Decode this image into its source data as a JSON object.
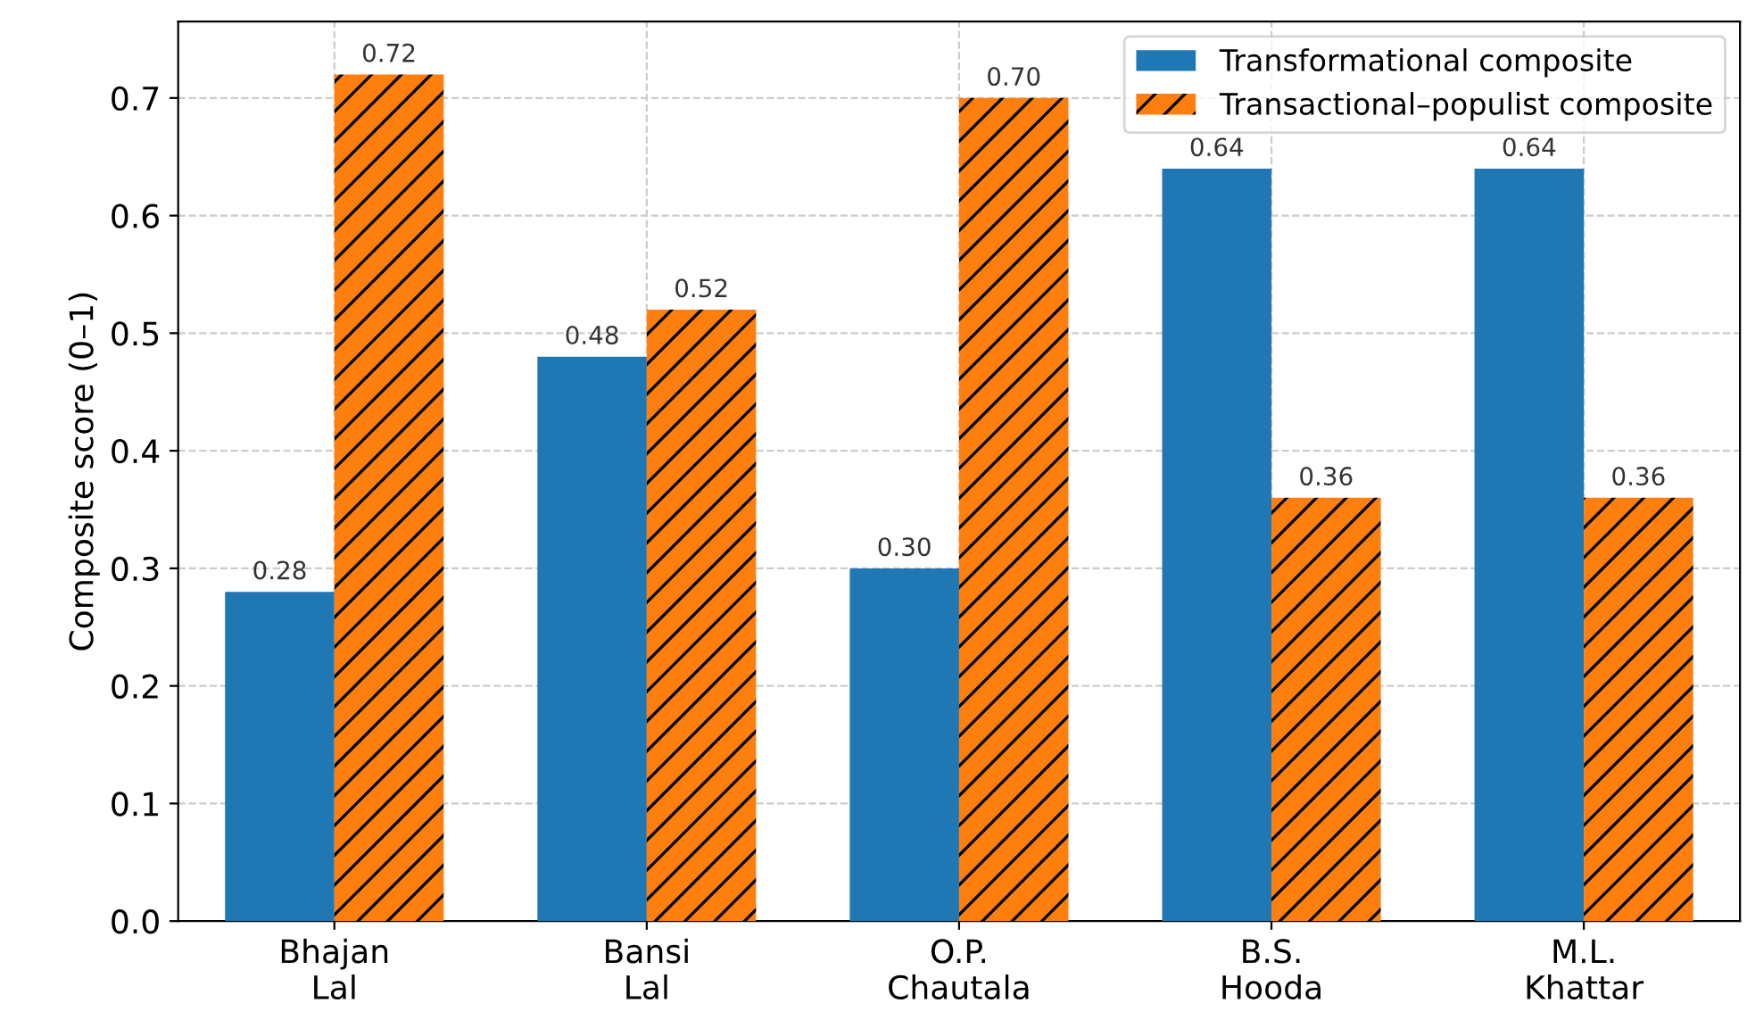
{
  "chart_data": {
    "type": "bar",
    "ylabel": "Composite score (0–1)",
    "categories": [
      "Bhajan\nLal",
      "Bansi\nLal",
      "O.P.\nChautala",
      "B.S.\nHooda",
      "M.L.\nKhattar"
    ],
    "series": [
      {
        "name": "Transformational composite",
        "color": "#1f77b4",
        "values": [
          0.28,
          0.48,
          0.3,
          0.64,
          0.64
        ],
        "value_labels": [
          "0.28",
          "0.48",
          "0.30",
          "0.64",
          "0.64"
        ]
      },
      {
        "name": "Transactional–populist composite",
        "color": "#ff7f0e",
        "values": [
          0.72,
          0.52,
          0.7,
          0.36,
          0.36
        ],
        "value_labels": [
          "0.72",
          "0.52",
          "0.70",
          "0.36",
          "0.36"
        ]
      }
    ],
    "ylim": [
      0,
      0.765
    ],
    "yticks": [
      {
        "value": 0,
        "label": "0.0"
      },
      {
        "value": 0.1,
        "label": "0.1"
      },
      {
        "value": 0.2,
        "label": "0.2"
      },
      {
        "value": 0.3,
        "label": "0.3"
      },
      {
        "value": 0.4,
        "label": "0.4"
      },
      {
        "value": 0.5,
        "label": "0.5"
      },
      {
        "value": 0.6,
        "label": "0.6"
      },
      {
        "value": 0.7,
        "label": "0.7"
      }
    ],
    "grid": true,
    "legend": "top right"
  }
}
